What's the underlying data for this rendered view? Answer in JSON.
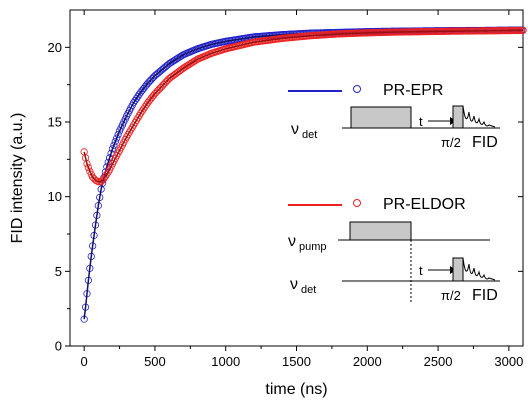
{
  "chart_data": {
    "type": "scatter",
    "xlabel": "time (ns)",
    "ylabel": "FID intensity (a.u.)",
    "xlim": [
      -100,
      3100
    ],
    "ylim": [
      0,
      22.5
    ],
    "x_ticks": [
      0,
      500,
      1000,
      1500,
      2000,
      2500,
      3000
    ],
    "y_ticks": [
      0,
      5,
      10,
      15,
      20
    ],
    "legend_position": "right",
    "grid": false,
    "series": [
      {
        "name": "PR-EPR",
        "color": "#2222cc",
        "marker": "open-circle",
        "fit_line": true,
        "points": [
          [
            0,
            1.8
          ],
          [
            10,
            2.6
          ],
          [
            20,
            3.5
          ],
          [
            30,
            4.4
          ],
          [
            40,
            5.2
          ],
          [
            50,
            6.0
          ],
          [
            60,
            6.7
          ],
          [
            70,
            7.4
          ],
          [
            80,
            8.1
          ],
          [
            100,
            9.4
          ],
          [
            120,
            10.5
          ],
          [
            140,
            11.3
          ],
          [
            160,
            12.0
          ],
          [
            180,
            12.6
          ],
          [
            200,
            13.2
          ],
          [
            250,
            14.4
          ],
          [
            300,
            15.4
          ],
          [
            350,
            16.3
          ],
          [
            400,
            17.0
          ],
          [
            450,
            17.6
          ],
          [
            500,
            18.1
          ],
          [
            600,
            18.9
          ],
          [
            700,
            19.5
          ],
          [
            800,
            19.9
          ],
          [
            900,
            20.2
          ],
          [
            1000,
            20.4
          ],
          [
            1200,
            20.7
          ],
          [
            1400,
            20.85
          ],
          [
            1600,
            20.95
          ],
          [
            1800,
            21.0
          ],
          [
            2000,
            21.05
          ],
          [
            2200,
            21.08
          ],
          [
            2400,
            21.1
          ],
          [
            2600,
            21.12
          ],
          [
            2800,
            21.13
          ],
          [
            3000,
            21.15
          ],
          [
            3100,
            21.15
          ]
        ]
      },
      {
        "name": "PR-ELDOR",
        "color": "#ee2222",
        "marker": "open-circle",
        "fit_line": true,
        "points": [
          [
            0,
            13.0
          ],
          [
            10,
            12.6
          ],
          [
            20,
            12.2
          ],
          [
            40,
            11.7
          ],
          [
            60,
            11.3
          ],
          [
            80,
            11.1
          ],
          [
            100,
            11.0
          ],
          [
            120,
            11.0
          ],
          [
            140,
            11.2
          ],
          [
            160,
            11.5
          ],
          [
            180,
            11.8
          ],
          [
            200,
            12.2
          ],
          [
            250,
            13.1
          ],
          [
            300,
            14.0
          ],
          [
            350,
            14.8
          ],
          [
            400,
            15.6
          ],
          [
            450,
            16.3
          ],
          [
            500,
            16.9
          ],
          [
            600,
            17.9
          ],
          [
            700,
            18.6
          ],
          [
            800,
            19.2
          ],
          [
            900,
            19.6
          ],
          [
            1000,
            19.9
          ],
          [
            1200,
            20.35
          ],
          [
            1400,
            20.6
          ],
          [
            1600,
            20.78
          ],
          [
            1800,
            20.9
          ],
          [
            2000,
            20.97
          ],
          [
            2200,
            21.02
          ],
          [
            2400,
            21.05
          ],
          [
            2600,
            21.08
          ],
          [
            2800,
            21.1
          ],
          [
            3000,
            21.12
          ],
          [
            3100,
            21.13
          ]
        ]
      }
    ]
  },
  "inset": {
    "top": {
      "label": "ν",
      "sub": "det",
      "arrow_label": "t",
      "pulse_label": "π/2",
      "fid_label": "FID"
    },
    "bottom": {
      "pump_label": "ν",
      "pump_sub": "pump",
      "det_label": "ν",
      "det_sub": "det",
      "arrow_label": "t",
      "pulse_label": "π/2",
      "fid_label": "FID"
    }
  }
}
